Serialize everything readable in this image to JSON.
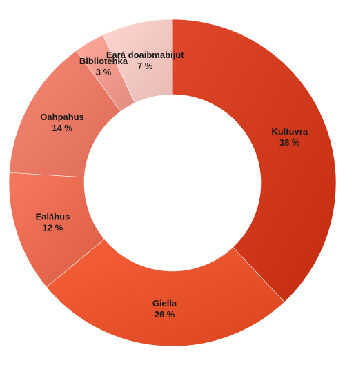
{
  "chart_data": {
    "type": "pie",
    "subtype": "donut",
    "title": "",
    "slices": [
      {
        "label": "Kultuvra",
        "value": 38,
        "pct_label": "38 %",
        "color": "#d23a1d"
      },
      {
        "label": "Giella",
        "value": 26,
        "pct_label": "26 %",
        "color": "#e8532d"
      },
      {
        "label": "Ealáhus",
        "value": 12,
        "pct_label": "12 %",
        "color": "#e86a50"
      },
      {
        "label": "Oahpahus",
        "value": 14,
        "pct_label": "14 %",
        "color": "#ea7a65"
      },
      {
        "label": "Bibliotehka",
        "value": 3,
        "pct_label": "3 %",
        "color": "#ef9a8c"
      },
      {
        "label": "Eará doaibmabijut",
        "value": 7,
        "pct_label": "7 %",
        "color": "#f6c8c2"
      }
    ]
  }
}
